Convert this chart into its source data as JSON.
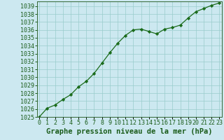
{
  "x": [
    0,
    1,
    2,
    3,
    4,
    5,
    6,
    7,
    8,
    9,
    10,
    11,
    12,
    13,
    14,
    15,
    16,
    17,
    18,
    19,
    20,
    21,
    22,
    23
  ],
  "y": [
    1025.0,
    1026.1,
    1026.5,
    1027.2,
    1027.8,
    1028.8,
    1029.5,
    1030.5,
    1031.8,
    1033.1,
    1034.3,
    1035.3,
    1036.0,
    1036.1,
    1035.8,
    1035.5,
    1036.1,
    1036.3,
    1036.6,
    1037.5,
    1038.3,
    1038.7,
    1039.1,
    1039.4
  ],
  "line_color": "#1a6b1a",
  "marker": "D",
  "marker_size": 2.2,
  "bg_color": "#cce8f0",
  "grid_color": "#99cccc",
  "title": "Graphe pression niveau de la mer (hPa)",
  "ylim_min": 1025,
  "ylim_max": 1039.6,
  "xlim_min": 0,
  "xlim_max": 23,
  "title_color": "#1a5c1a",
  "title_fontsize": 7.5,
  "tick_fontsize": 6,
  "tick_color": "#1a5c1a",
  "spine_color": "#336633",
  "linewidth": 0.9
}
